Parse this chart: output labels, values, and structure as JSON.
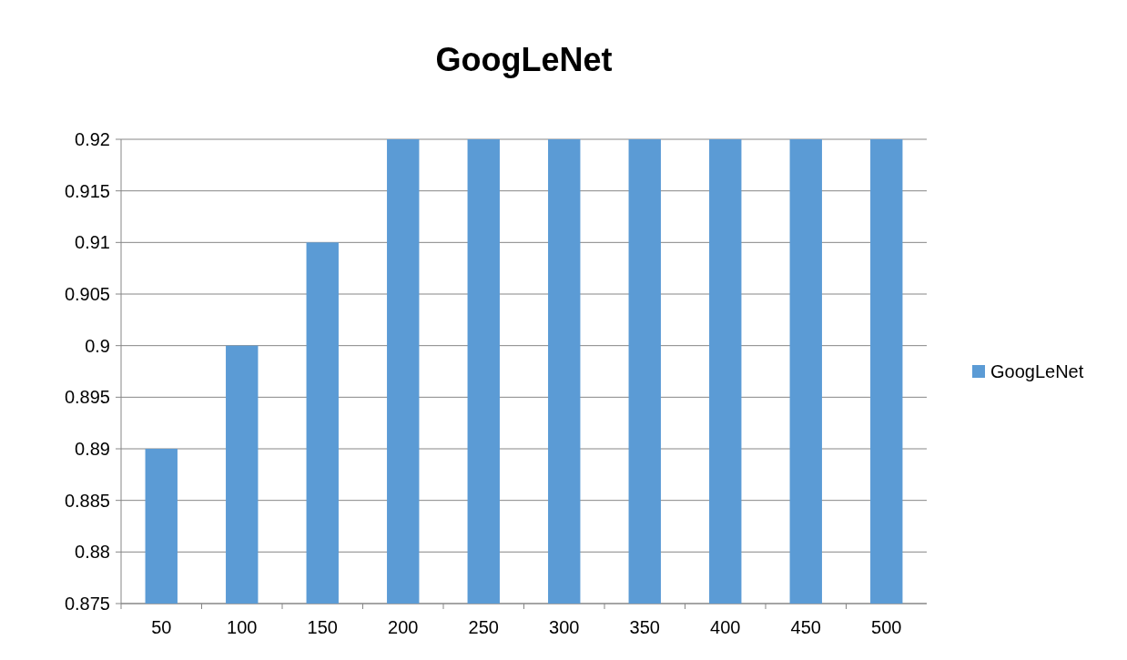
{
  "chart_data": {
    "type": "bar",
    "title": "GoogLeNet",
    "categories": [
      "50",
      "100",
      "150",
      "200",
      "250",
      "300",
      "350",
      "400",
      "450",
      "500"
    ],
    "series": [
      {
        "name": "GoogLeNet",
        "color": "#5b9bd5",
        "values": [
          0.89,
          0.9,
          0.91,
          0.92,
          0.92,
          0.92,
          0.92,
          0.92,
          0.92,
          0.92
        ]
      }
    ],
    "ylim": [
      0.875,
      0.92
    ],
    "yticks": [
      0.875,
      0.88,
      0.885,
      0.89,
      0.895,
      0.9,
      0.905,
      0.91,
      0.915,
      0.92
    ],
    "grid": "y",
    "legend": "right"
  }
}
